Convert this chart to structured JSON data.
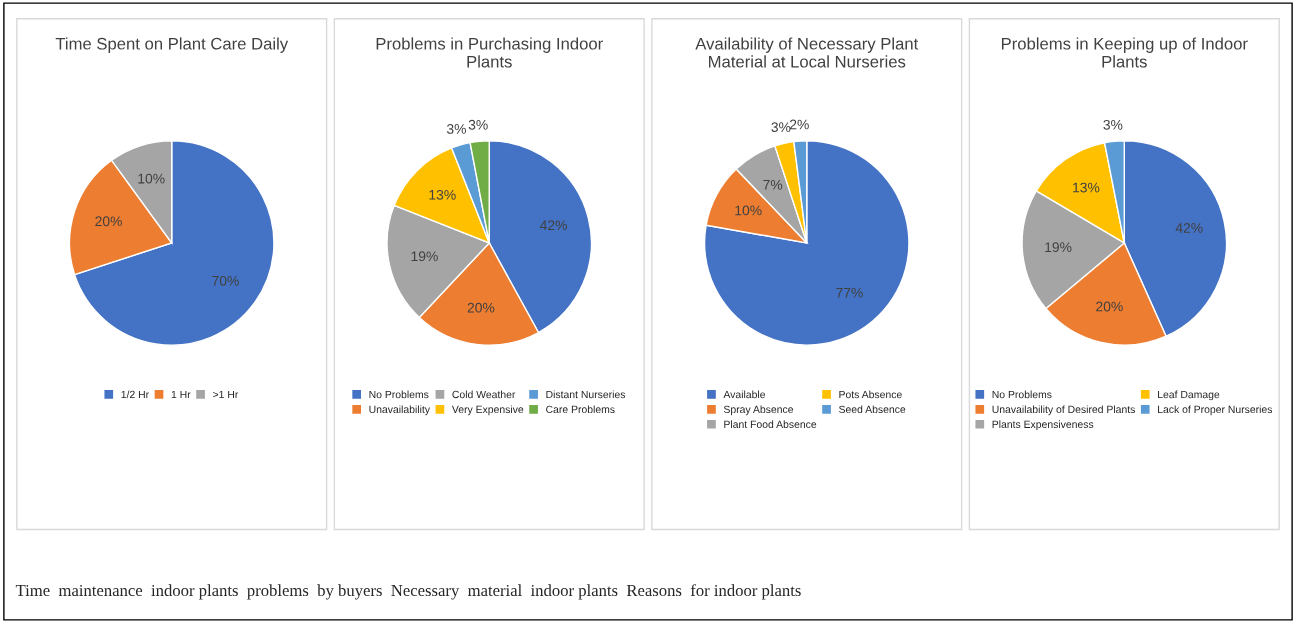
{
  "chart_data": [
    {
      "type": "pie",
      "title": "Time Spent on Plant Care Daily",
      "categories": [
        "1/2 Hr",
        "1 Hr",
        ">1 Hr"
      ],
      "values": [
        70,
        20,
        10
      ],
      "value_labels": [
        "70%",
        "20%",
        "10%"
      ],
      "colors": [
        "#4472c4",
        "#ed7d31",
        "#a5a5a5"
      ],
      "legend": "bottom",
      "annotations": [
        "Time  maintenance  indoor plants  problems  by buyers  Necessary  material  indoor plants  Reasons  for indoor plants"
      ]
    },
    {
      "type": "pie",
      "title": "Problems in Purchasing Indoor Plants",
      "categories": [
        "No Problems",
        "Unavailability",
        "Cold Weather",
        "Very Expensive",
        "Distant Nurseries",
        "Care Problems"
      ],
      "values": [
        42,
        20,
        19,
        13,
        3,
        3
      ],
      "value_labels": [
        "42%",
        "20%",
        "19%",
        "13%",
        "3%",
        "3%"
      ],
      "colors": [
        "#4472c4",
        "#ed7d31",
        "#a5a5a5",
        "#ffc000",
        "#5b9bd5",
        "#70ad47"
      ],
      "legend": "bottom"
    },
    {
      "type": "pie",
      "title": "Availability of Necessary Plant Material at Local Nurseries",
      "categories": [
        "Available",
        "Spray Absence",
        "Plant Food Absence",
        "Pots Absence",
        "Seed Absence"
      ],
      "values": [
        77,
        10,
        7,
        3,
        2
      ],
      "value_labels": [
        "77%",
        "10%",
        "7%",
        "3%",
        "2%"
      ],
      "colors": [
        "#4472c4",
        "#ed7d31",
        "#a5a5a5",
        "#ffc000",
        "#5b9bd5"
      ],
      "legend": "bottom"
    },
    {
      "type": "pie",
      "title": "Problems in Keeping up of Indoor Plants",
      "categories": [
        "No Problems",
        "Unavailability of Desired Plants",
        "Plants Expensiveness",
        "Leaf Damage",
        "Lack of Proper Nurseries"
      ],
      "values": [
        42,
        20,
        19,
        13,
        3
      ],
      "value_labels": [
        "42%",
        "20%",
        "19%",
        "13%",
        "3%"
      ],
      "colors": [
        "#4472c4",
        "#ed7d31",
        "#a5a5a5",
        "#ffc000",
        "#5b9bd5"
      ],
      "legend": "bottom"
    }
  ]
}
